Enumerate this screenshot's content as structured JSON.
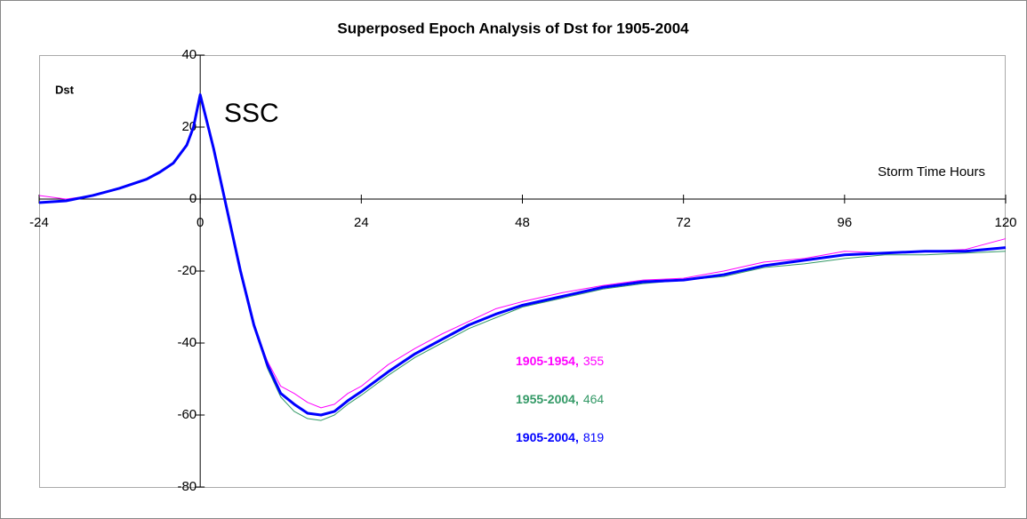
{
  "chart_data": {
    "type": "line",
    "title": "Superposed Epoch Analysis of Dst for 1905-2004",
    "y_label": "Dst",
    "x_label": "Storm Time Hours",
    "annotation": "SSC",
    "x": [
      -24,
      -20,
      -16,
      -12,
      -8,
      -6,
      -4,
      -2,
      -1,
      0,
      2,
      4,
      6,
      8,
      10,
      12,
      14,
      16,
      18,
      20,
      22,
      24,
      28,
      32,
      36,
      40,
      44,
      48,
      54,
      60,
      66,
      72,
      78,
      84,
      90,
      96,
      102,
      108,
      114,
      120
    ],
    "series": [
      {
        "name": "1905-1954,",
        "count": 355,
        "color": "#ff00ff",
        "width": 1,
        "values": [
          1,
          0,
          1,
          3,
          5.5,
          7.5,
          10,
          15,
          20,
          29,
          14,
          -3,
          -20,
          -35,
          -45,
          -52,
          -54,
          -56.5,
          -58,
          -57,
          -54,
          -52,
          -46,
          -41.5,
          -37.5,
          -34,
          -30.5,
          -28.5,
          -26,
          -24,
          -22.5,
          -22,
          -20,
          -17.5,
          -16.5,
          -14.5,
          -15,
          -14.5,
          -14,
          -11
        ]
      },
      {
        "name": "1955-2004,",
        "count": 464,
        "color": "#339966",
        "width": 1,
        "values": [
          -1,
          -0.5,
          1,
          3,
          5.5,
          7.5,
          10,
          15,
          20,
          28.5,
          14,
          -3,
          -20,
          -35,
          -47,
          -55,
          -59,
          -61,
          -61.5,
          -60,
          -57,
          -54.5,
          -49,
          -44,
          -40,
          -36,
          -33,
          -30,
          -27.5,
          -25,
          -23.5,
          -22.5,
          -21.5,
          -19,
          -18,
          -16.5,
          -15.5,
          -15.5,
          -15,
          -14.5
        ]
      },
      {
        "name": "1905-2004,",
        "count": 819,
        "color": "#0000ff",
        "width": 3,
        "values": [
          -1,
          -0.5,
          1,
          3,
          5.5,
          7.5,
          10,
          15,
          20,
          29,
          14,
          -3,
          -20,
          -35,
          -46,
          -54,
          -57,
          -59.5,
          -60,
          -59,
          -56,
          -53.5,
          -48,
          -43,
          -39,
          -35,
          -32,
          -29.5,
          -27,
          -24.5,
          -23,
          -22.5,
          -21,
          -18.5,
          -17,
          -15.5,
          -15,
          -14.5,
          -14.5,
          -13.5
        ]
      }
    ],
    "xlim": [
      -24,
      120
    ],
    "xticks": [
      -24,
      0,
      24,
      48,
      72,
      96,
      120
    ],
    "ylim": [
      -80,
      40
    ],
    "yticks": [
      -80,
      -60,
      -40,
      -20,
      0,
      20,
      40
    ]
  }
}
